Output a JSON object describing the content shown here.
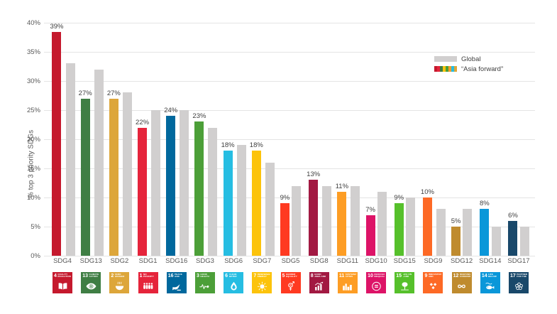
{
  "chart": {
    "ylabel": "% top 3 priority SDGs",
    "y_ticks_desc": [
      "40%",
      "35%",
      "30%",
      "25%",
      "20%",
      "15%",
      "10%",
      "5%",
      "0%"
    ],
    "legend": {
      "global_label": "Global",
      "asia_label": "“Asia forward”"
    },
    "colors": {
      "global_bar": "#D1CFCF",
      "gridline": "#E4E4E4",
      "tick_text": "#595959",
      "value_label_text": "#3F3F3F"
    }
  },
  "chart_data": {
    "type": "bar",
    "title": "",
    "xlabel": "",
    "ylabel": "% top 3 priority SDGs",
    "ylim": [
      0,
      40
    ],
    "y_tick_step": 5,
    "grid": true,
    "legend_position": "top-right",
    "categories": [
      "SDG4",
      "SDG13",
      "SDG2",
      "SDG1",
      "SDG16",
      "SDG3",
      "SDG6",
      "SDG7",
      "SDG5",
      "SDG8",
      "SDG11",
      "SDG10",
      "SDG15",
      "SDG9",
      "SDG12",
      "SDG14",
      "SDG17"
    ],
    "series": [
      {
        "name": "“Asia forward”",
        "values": [
          39,
          27,
          27,
          22,
          24,
          23,
          18,
          18,
          9,
          13,
          11,
          7,
          9,
          10,
          5,
          8,
          6
        ]
      },
      {
        "name": "Global",
        "values": [
          33,
          32,
          28,
          25,
          25,
          22,
          19,
          16,
          12,
          12,
          12,
          11,
          10,
          8,
          8,
          5,
          5
        ]
      }
    ],
    "value_labels_on_series": "“Asia forward”",
    "items": [
      {
        "id": "SDG4",
        "label": "SDG4",
        "asia": 39,
        "global": 33,
        "value_label": "39%",
        "color": "#C5192D",
        "num": "4",
        "title": "QUALITY EDUCATION",
        "icon": "book"
      },
      {
        "id": "SDG13",
        "label": "SDG13",
        "asia": 27,
        "global": 32,
        "value_label": "27%",
        "color": "#3F7E44",
        "num": "13",
        "title": "CLIMATE ACTION",
        "icon": "eye"
      },
      {
        "id": "SDG2",
        "label": "SDG2",
        "asia": 27,
        "global": 28,
        "value_label": "27%",
        "color": "#DDA63A",
        "num": "2",
        "title": "ZERO HUNGER",
        "icon": "bowl"
      },
      {
        "id": "SDG1",
        "label": "SDG1",
        "asia": 22,
        "global": 25,
        "value_label": "22%",
        "color": "#E5243B",
        "num": "1",
        "title": "NO POVERTY",
        "icon": "people"
      },
      {
        "id": "SDG16",
        "label": "SDG16",
        "asia": 24,
        "global": 25,
        "value_label": "24%",
        "color": "#00689D",
        "num": "16",
        "title": "PEACE AND JUSTICE",
        "icon": "dove"
      },
      {
        "id": "SDG3",
        "label": "SDG3",
        "asia": 23,
        "global": 22,
        "value_label": "23%",
        "color": "#4C9F38",
        "num": "3",
        "title": "GOOD HEALTH",
        "icon": "heart"
      },
      {
        "id": "SDG6",
        "label": "SDG6",
        "asia": 18,
        "global": 19,
        "value_label": "18%",
        "color": "#26BDE2",
        "num": "6",
        "title": "CLEAN WATER AND SANITATION",
        "icon": "drop"
      },
      {
        "id": "SDG7",
        "label": "SDG7",
        "asia": 18,
        "global": 16,
        "value_label": "18%",
        "color": "#FCC30B",
        "num": "7",
        "title": "RENEWABLE ENERGY",
        "icon": "sun"
      },
      {
        "id": "SDG5",
        "label": "SDG5",
        "asia": 9,
        "global": 12,
        "value_label": "9%",
        "color": "#FF3A21",
        "num": "5",
        "title": "GENDER EQUALITY",
        "icon": "gender"
      },
      {
        "id": "SDG8",
        "label": "SDG8",
        "asia": 13,
        "global": 12,
        "value_label": "13%",
        "color": "#A21942",
        "num": "8",
        "title": "GOOD JOBS AND ECONOMIC GROWTH",
        "icon": "growth"
      },
      {
        "id": "SDG11",
        "label": "SDG11",
        "asia": 11,
        "global": 12,
        "value_label": "11%",
        "color": "#FD9D24",
        "num": "11",
        "title": "SUSTAINABLE CITIES AND COMMUNITIES",
        "icon": "city"
      },
      {
        "id": "SDG10",
        "label": "SDG10",
        "asia": 7,
        "global": 11,
        "value_label": "7%",
        "color": "#DD1367",
        "num": "10",
        "title": "REDUCED INEQUALITIES",
        "icon": "eq"
      },
      {
        "id": "SDG15",
        "label": "SDG15",
        "asia": 9,
        "global": 10,
        "value_label": "9%",
        "color": "#56C02B",
        "num": "15",
        "title": "LIFE ON LAND",
        "icon": "tree"
      },
      {
        "id": "SDG9",
        "label": "SDG9",
        "asia": 10,
        "global": 8,
        "value_label": "10%",
        "color": "#FD6925",
        "num": "9",
        "title": "INNOVATION AND INFRASTRUCTURE",
        "icon": "cubes"
      },
      {
        "id": "SDG12",
        "label": "SDG12",
        "asia": 5,
        "global": 8,
        "value_label": "5%",
        "color": "#BF8B2E",
        "num": "12",
        "title": "RESPONSIBLE CONSUMPTION",
        "icon": "inf"
      },
      {
        "id": "SDG14",
        "label": "SDG14",
        "asia": 8,
        "global": 5,
        "value_label": "8%",
        "color": "#0A97D9",
        "num": "14",
        "title": "LIFE BELOW WATER",
        "icon": "fish"
      },
      {
        "id": "SDG17",
        "label": "SDG17",
        "asia": 6,
        "global": 5,
        "value_label": "6%",
        "color": "#19486A",
        "num": "17",
        "title": "PARTNERSHIPS FOR THE GOALS",
        "icon": "rings"
      }
    ]
  }
}
